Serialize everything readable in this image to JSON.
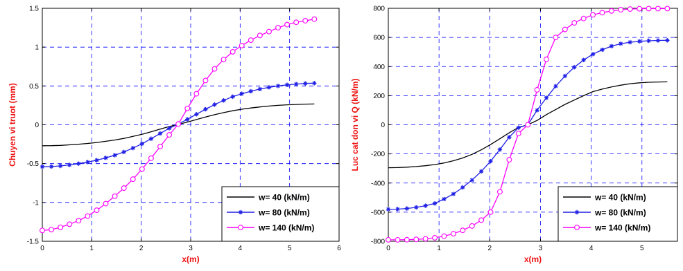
{
  "chart_data": [
    {
      "type": "line",
      "xlabel": "x(m)",
      "ylabel": "Chuyen vi truot (mm)",
      "xlim": [
        0,
        6
      ],
      "ylim": [
        -1.5,
        1.5
      ],
      "xticks": [
        "0",
        "1",
        "2",
        "3",
        "4",
        "5",
        "6"
      ],
      "yticks": [
        "-1.5",
        "-1",
        "-0.5",
        "0",
        "0.5",
        "1",
        "1.5"
      ],
      "grid": true,
      "legend_position": "bottom-right",
      "x": [
        0,
        0.1833,
        0.3667,
        0.55,
        0.7333,
        0.9167,
        1.1,
        1.2833,
        1.4667,
        1.65,
        1.8333,
        2.0167,
        2.2,
        2.3833,
        2.5667,
        2.75,
        2.9333,
        3.1167,
        3.3,
        3.4833,
        3.6667,
        3.85,
        4.0333,
        4.2167,
        4.4,
        4.5833,
        4.7667,
        4.95,
        5.1333,
        5.3167,
        5.5
      ],
      "series": [
        {
          "name": "w= 40 (kN/m)",
          "color": "#000000",
          "marker": "none",
          "values": [
            -0.27,
            -0.269,
            -0.265,
            -0.258,
            -0.25,
            -0.24,
            -0.228,
            -0.213,
            -0.196,
            -0.175,
            -0.15,
            -0.122,
            -0.09,
            -0.056,
            -0.022,
            0.005,
            0.035,
            0.068,
            0.1,
            0.13,
            0.157,
            0.181,
            0.2,
            0.216,
            0.23,
            0.241,
            0.25,
            0.257,
            0.262,
            0.266,
            0.268
          ]
        },
        {
          "name": "w= 80 (kN/m)",
          "color": "#1f1fe6",
          "marker": "star",
          "values": [
            -0.54,
            -0.538,
            -0.53,
            -0.517,
            -0.5,
            -0.48,
            -0.456,
            -0.426,
            -0.392,
            -0.35,
            -0.3,
            -0.244,
            -0.18,
            -0.112,
            -0.045,
            0.01,
            0.07,
            0.135,
            0.2,
            0.26,
            0.314,
            0.362,
            0.4,
            0.432,
            0.46,
            0.482,
            0.5,
            0.514,
            0.524,
            0.532,
            0.536
          ]
        },
        {
          "name": "w= 140 (kN/m)",
          "color": "#ff00ff",
          "marker": "circle",
          "values": [
            -1.36,
            -1.35,
            -1.32,
            -1.28,
            -1.235,
            -1.175,
            -1.1,
            -1.015,
            -0.92,
            -0.815,
            -0.7,
            -0.57,
            -0.43,
            -0.28,
            -0.13,
            0.01,
            0.21,
            0.4,
            0.57,
            0.72,
            0.84,
            0.94,
            1.02,
            1.09,
            1.15,
            1.2,
            1.25,
            1.29,
            1.32,
            1.34,
            1.36
          ]
        }
      ]
    },
    {
      "type": "line",
      "xlabel": "x(m)",
      "ylabel": "Luc cat don vi Q (kN/m)",
      "xlim": [
        0,
        5.7
      ],
      "ylim": [
        -800,
        800
      ],
      "xticks": [
        "0",
        "1",
        "2",
        "3",
        "4",
        "5"
      ],
      "yticks": [
        "-800",
        "-600",
        "-400",
        "-200",
        "0",
        "200",
        "400",
        "600",
        "800"
      ],
      "grid": true,
      "legend_position": "bottom-right",
      "x": [
        0,
        0.1833,
        0.3667,
        0.55,
        0.7333,
        0.9167,
        1.1,
        1.2833,
        1.4667,
        1.65,
        1.8333,
        2.0167,
        2.2,
        2.3833,
        2.5667,
        2.75,
        2.9333,
        3.1167,
        3.3,
        3.4833,
        3.6667,
        3.85,
        4.0333,
        4.2167,
        4.4,
        4.5833,
        4.7667,
        4.95,
        5.1333,
        5.3167,
        5.5
      ],
      "series": [
        {
          "name": "w= 40 (kN/m)",
          "color": "#000000",
          "marker": "none",
          "values": [
            -295,
            -294,
            -291,
            -287,
            -281,
            -273,
            -262,
            -247,
            -228,
            -203,
            -172,
            -136,
            -96,
            -55,
            -18,
            0,
            30,
            70,
            105,
            140,
            170,
            200,
            228,
            245,
            260,
            272,
            282,
            288,
            292,
            294,
            295
          ]
        },
        {
          "name": "w= 80 (kN/m)",
          "color": "#1f1fe6",
          "marker": "star",
          "values": [
            -580,
            -579,
            -575,
            -567,
            -556,
            -540,
            -510,
            -475,
            -430,
            -380,
            -320,
            -250,
            -170,
            -85,
            -20,
            0,
            100,
            185,
            265,
            335,
            395,
            445,
            485,
            515,
            540,
            557,
            567,
            573,
            577,
            579,
            580
          ]
        },
        {
          "name": "w= 140 (kN/m)",
          "color": "#ff00ff",
          "marker": "circle",
          "values": [
            -790,
            -790,
            -789,
            -787,
            -783,
            -776,
            -765,
            -748,
            -725,
            -695,
            -655,
            -600,
            -460,
            -240,
            -60,
            0,
            240,
            450,
            600,
            655,
            700,
            730,
            755,
            770,
            782,
            790,
            795,
            797,
            798,
            798,
            798
          ]
        }
      ]
    }
  ]
}
